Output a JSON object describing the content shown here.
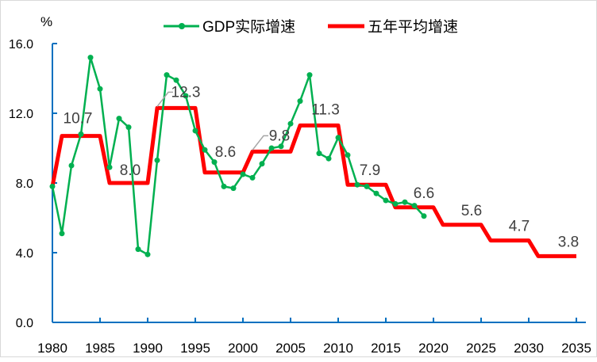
{
  "chart_data": {
    "type": "line",
    "ylabel": "%",
    "ylim": [
      0,
      16
    ],
    "yticks": [
      "0.0",
      "4.0",
      "8.0",
      "12.0",
      "16.0"
    ],
    "xlim": [
      1980,
      2035
    ],
    "xticks": [
      "1980",
      "1985",
      "1990",
      "1995",
      "2000",
      "2005",
      "2010",
      "2015",
      "2020",
      "2025",
      "2030",
      "2035"
    ],
    "series": [
      {
        "name": "GDP实际增速",
        "color": "#00b050",
        "x": [
          1980,
          1981,
          1982,
          1983,
          1984,
          1985,
          1986,
          1987,
          1988,
          1989,
          1990,
          1991,
          1992,
          1993,
          1994,
          1995,
          1996,
          1997,
          1998,
          1999,
          2000,
          2001,
          2002,
          2003,
          2004,
          2005,
          2006,
          2007,
          2008,
          2009,
          2010,
          2011,
          2012,
          2013,
          2014,
          2015,
          2016,
          2017,
          2018,
          2019
        ],
        "values": [
          7.8,
          5.1,
          9.0,
          10.8,
          15.2,
          13.4,
          8.9,
          11.7,
          11.2,
          4.2,
          3.9,
          9.3,
          14.2,
          13.9,
          13.0,
          11.0,
          9.9,
          9.2,
          7.8,
          7.7,
          8.5,
          8.3,
          9.1,
          10.0,
          10.1,
          11.4,
          12.7,
          14.2,
          9.7,
          9.4,
          10.6,
          9.6,
          7.9,
          7.8,
          7.4,
          7.0,
          6.8,
          6.9,
          6.7,
          6.1
        ]
      },
      {
        "name": "五年平均增速",
        "color": "#ff0000",
        "periods": [
          {
            "from": 1981,
            "to": 1985,
            "value": 10.7,
            "label": "10.7"
          },
          {
            "from": 1986,
            "to": 1990,
            "value": 8.0,
            "label": "8.0"
          },
          {
            "from": 1991,
            "to": 1995,
            "value": 12.3,
            "label": "12.3"
          },
          {
            "from": 1996,
            "to": 2000,
            "value": 8.6,
            "label": "8.6"
          },
          {
            "from": 2001,
            "to": 2005,
            "value": 9.8,
            "label": "9.8"
          },
          {
            "from": 2006,
            "to": 2010,
            "value": 11.3,
            "label": "11.3"
          },
          {
            "from": 2011,
            "to": 2015,
            "value": 7.9,
            "label": "7.9"
          },
          {
            "from": 2016,
            "to": 2020,
            "value": 6.6,
            "label": "6.6"
          },
          {
            "from": 2021,
            "to": 2025,
            "value": 5.6,
            "label": "5.6"
          },
          {
            "from": 2026,
            "to": 2030,
            "value": 4.7,
            "label": "4.7"
          },
          {
            "from": 2031,
            "to": 2035,
            "value": 3.8,
            "label": "3.8"
          }
        ]
      }
    ],
    "legend": "top-center",
    "grid": false
  }
}
